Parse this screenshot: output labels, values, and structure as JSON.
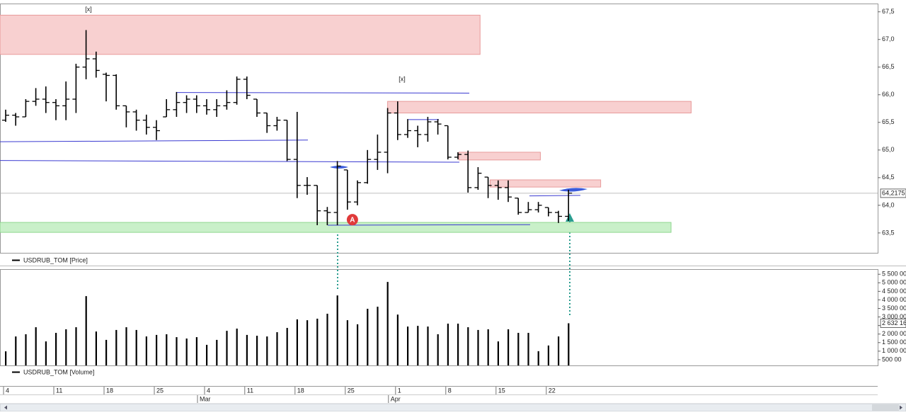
{
  "chart_data": [
    {
      "type": "ohlc",
      "legend": "USDRUB_TOM [Price]",
      "color": "#000000",
      "open": [
        65.54,
        65.63,
        65.6,
        65.88,
        65.92,
        65.86,
        65.8,
        65.92,
        66.5,
        66.65,
        66.37,
        66.35,
        65.8,
        65.69,
        65.54,
        65.41,
        65.6,
        65.73,
        65.86,
        65.92,
        65.8,
        65.73,
        65.8,
        65.86,
        66.28,
        65.92,
        65.67,
        65.44,
        65.54,
        64.83,
        64.36,
        64.36,
        63.9,
        63.87,
        64.64,
        64.06,
        64.41,
        64.83,
        64.96,
        65.67,
        65.28,
        65.35,
        65.28,
        65.51,
        65.44,
        64.87,
        64.92,
        64.32,
        64.51,
        64.36,
        64.32,
        64.13,
        63.87,
        63.92,
        63.96,
        63.87,
        63.8
      ],
      "high": [
        65.73,
        65.67,
        65.92,
        66.12,
        66.15,
        65.92,
        66.24,
        66.56,
        67.17,
        66.78,
        66.4,
        66.37,
        65.8,
        65.73,
        65.64,
        65.54,
        65.92,
        66.05,
        65.99,
        65.99,
        65.92,
        65.92,
        66.08,
        66.33,
        66.33,
        65.92,
        65.67,
        65.6,
        65.54,
        65.69,
        64.51,
        64.36,
        63.97,
        64.8,
        64.64,
        64.45,
        65.0,
        65.28,
        65.76,
        65.88,
        65.56,
        65.44,
        65.6,
        65.56,
        65.44,
        64.96,
        64.99,
        64.69,
        64.51,
        64.45,
        64.45,
        64.13,
        64.06,
        64.06,
        63.96,
        63.9,
        64.28
      ],
      "low": [
        65.51,
        65.44,
        65.6,
        65.8,
        65.67,
        65.54,
        65.54,
        65.67,
        66.28,
        66.31,
        65.88,
        65.73,
        65.41,
        65.35,
        65.28,
        65.18,
        65.6,
        65.6,
        65.67,
        65.67,
        65.64,
        65.6,
        65.73,
        65.82,
        65.92,
        65.6,
        65.31,
        65.35,
        64.8,
        64.13,
        64.19,
        63.64,
        63.64,
        63.64,
        63.92,
        64.0,
        64.39,
        64.64,
        64.58,
        65.18,
        65.22,
        65.05,
        65.15,
        65.28,
        64.83,
        64.83,
        64.23,
        64.28,
        64.13,
        64.1,
        64.06,
        63.83,
        63.87,
        63.87,
        63.8,
        63.68,
        63.72
      ],
      "close": [
        65.63,
        65.6,
        65.88,
        65.92,
        65.86,
        65.8,
        65.92,
        66.5,
        66.65,
        66.44,
        66.35,
        65.8,
        65.69,
        65.54,
        65.41,
        65.35,
        65.73,
        65.86,
        65.92,
        65.8,
        65.73,
        65.8,
        65.86,
        66.28,
        65.99,
        65.67,
        65.44,
        65.54,
        64.83,
        64.36,
        64.36,
        63.9,
        63.87,
        64.71,
        64.06,
        64.41,
        64.83,
        64.96,
        65.67,
        65.28,
        65.35,
        65.28,
        65.51,
        65.47,
        64.87,
        64.92,
        64.32,
        64.58,
        64.36,
        64.32,
        64.15,
        63.87,
        63.92,
        64.0,
        63.87,
        63.8,
        64.22
      ],
      "ylim": [
        63.14,
        67.65
      ],
      "yticks": [
        {
          "value": 63.5,
          "label": "63,5"
        },
        {
          "value": 64.0,
          "label": "64,0"
        },
        {
          "value": 64.5,
          "label": "64,5"
        },
        {
          "value": 65.0,
          "label": "65,0"
        },
        {
          "value": 65.5,
          "label": "65,5"
        },
        {
          "value": 66.0,
          "label": "66,0"
        },
        {
          "value": 66.5,
          "label": "66,5"
        },
        {
          "value": 67.0,
          "label": "67,0"
        },
        {
          "value": 67.5,
          "label": "67,5"
        }
      ],
      "current": {
        "value": 64.2175,
        "label": "64,2175"
      },
      "zones": [
        {
          "x": [
            -0.56,
            47.2
          ],
          "y": [
            66.73,
            67.44
          ],
          "color": "#f8d0d0"
        },
        {
          "x": [
            38.0,
            68.2
          ],
          "y": [
            65.67,
            65.88
          ],
          "color": "#f8d0d0"
        },
        {
          "x": [
            45.1,
            53.2
          ],
          "y": [
            64.82,
            64.96
          ],
          "color": "#f8d0d0"
        },
        {
          "x": [
            48.2,
            59.2
          ],
          "y": [
            64.33,
            64.46
          ],
          "color": "#f8d0d0"
        },
        {
          "x": [
            -0.56,
            66.2
          ],
          "y": [
            63.51,
            63.69
          ],
          "color": "#c9f0c9"
        }
      ],
      "lines": [
        {
          "x": [
            -0.56,
            30.07
          ],
          "y": [
            65.15,
            65.18
          ]
        },
        {
          "x": [
            -0.56,
            45.14
          ],
          "y": [
            64.81,
            64.78
          ]
        },
        {
          "x": [
            16.97,
            46.13
          ],
          "y": [
            66.04,
            66.03
          ]
        },
        {
          "x": [
            32.04,
            52.18
          ],
          "y": [
            63.64,
            63.65
          ]
        },
        {
          "x": [
            52.11,
            57.18
          ],
          "y": [
            64.17,
            64.18
          ]
        },
        {
          "x": [
            40.07,
            43.1
          ],
          "y": [
            65.55,
            65.55
          ]
        }
      ],
      "line_color": "#3b3bd1",
      "annotations": [
        {
          "text": "[x]",
          "x": 8.24,
          "y": 67.54
        },
        {
          "text": "[x]",
          "x": 39.44,
          "y": 66.28
        },
        {
          "text": "A",
          "x": 34.5,
          "y": 63.74,
          "badge_color": "#e03a3a"
        }
      ]
    },
    {
      "type": "bar",
      "legend": "USDRUB_TOM [Volume]",
      "color": "#000000",
      "values": [
        990000,
        1860000,
        1990000,
        2400000,
        1570000,
        2070000,
        2280000,
        2400000,
        4220000,
        2150000,
        1660000,
        2240000,
        2400000,
        2240000,
        1860000,
        1950000,
        1990000,
        1820000,
        1740000,
        1820000,
        1370000,
        1660000,
        2190000,
        2320000,
        1950000,
        1900000,
        1860000,
        2110000,
        2360000,
        2860000,
        2810000,
        2900000,
        3190000,
        4260000,
        2810000,
        2570000,
        3480000,
        3600000,
        5050000,
        3140000,
        2440000,
        2480000,
        2440000,
        1990000,
        2610000,
        2610000,
        2400000,
        2240000,
        2280000,
        1570000,
        2280000,
        2070000,
        2070000,
        1000000,
        1330000,
        1860000,
        2632160
      ],
      "ylim": [
        165000,
        5800000
      ],
      "yticks": [
        {
          "value": 500000,
          "label": "500 00"
        },
        {
          "value": 1000000,
          "label": "1 000 00"
        },
        {
          "value": 1500000,
          "label": "1 500 00"
        },
        {
          "value": 2000000,
          "label": "2 000 00"
        },
        {
          "value": 2500000,
          "label": "2 500 00"
        },
        {
          "value": 3000000,
          "label": "3 000 00"
        },
        {
          "value": 3500000,
          "label": "3 500 00"
        },
        {
          "value": 4000000,
          "label": "4 000 00"
        },
        {
          "value": 4500000,
          "label": "4 500 00"
        },
        {
          "value": 5000000,
          "label": "5 000 00"
        },
        {
          "value": 5500000,
          "label": "5 500 00"
        }
      ],
      "current": {
        "value": 2632160,
        "label": "2 632 16"
      },
      "categories": [
        "4",
        null,
        null,
        null,
        null,
        "11",
        null,
        null,
        null,
        null,
        "18",
        null,
        null,
        null,
        null,
        "25",
        null,
        null,
        null,
        null,
        "4",
        null,
        null,
        null,
        "11",
        null,
        null,
        null,
        null,
        "18",
        null,
        null,
        null,
        null,
        "25",
        null,
        null,
        null,
        null,
        "1",
        null,
        null,
        null,
        null,
        "8",
        null,
        null,
        null,
        null,
        "15",
        null,
        null,
        null,
        null,
        "22",
        null,
        null
      ],
      "month_categories": [
        null,
        null,
        null,
        null,
        null,
        null,
        null,
        null,
        null,
        null,
        null,
        null,
        null,
        null,
        null,
        null,
        null,
        null,
        null,
        null,
        "Mar",
        null,
        null,
        null,
        null,
        null,
        null,
        null,
        null,
        null,
        null,
        null,
        null,
        null,
        null,
        null,
        null,
        null,
        null,
        "Apr",
        null,
        null,
        null,
        null,
        null,
        null,
        null,
        null,
        null,
        null,
        null,
        null,
        null,
        null,
        null,
        null,
        null
      ]
    }
  ]
}
